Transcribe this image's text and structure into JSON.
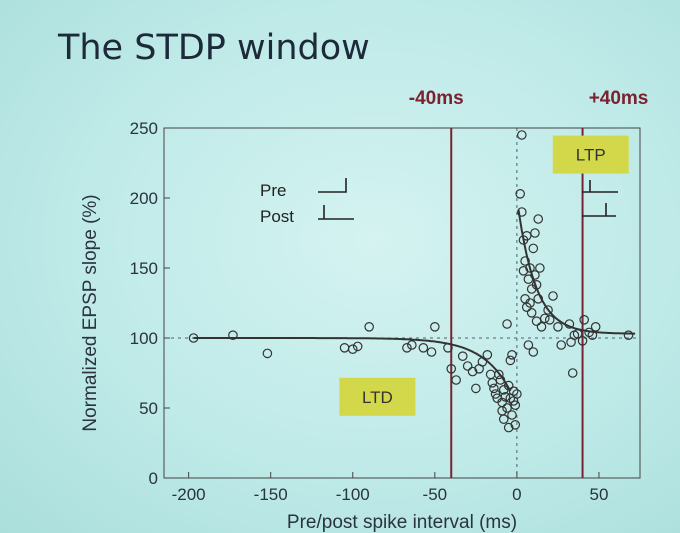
{
  "slide": {
    "title": "The STDP window"
  },
  "chart_data": {
    "type": "scatter",
    "title": "",
    "xlabel": "Pre/post spike interval (ms)",
    "ylabel": "Normalized EPSP slope (%)",
    "xlim": [
      -215,
      75
    ],
    "ylim": [
      0,
      250
    ],
    "xticks": [
      -200,
      -150,
      -100,
      -50,
      0,
      50
    ],
    "yticks": [
      0,
      50,
      100,
      150,
      200,
      250
    ],
    "reference_lines": [
      {
        "label": "-40ms",
        "x": -40
      },
      {
        "label": "+40ms",
        "x": 40
      }
    ],
    "baseline": 100,
    "legend_inset": {
      "pre": "Pre",
      "post": "Post"
    },
    "regions": [
      {
        "label": "LTD",
        "x": -85,
        "y": 58
      },
      {
        "label": "LTP",
        "x": 45,
        "y": 231
      }
    ],
    "series": [
      {
        "points": [
          [
            -197,
            100
          ],
          [
            -173,
            102
          ],
          [
            -152,
            89
          ],
          [
            -105,
            93
          ],
          [
            -100,
            92
          ],
          [
            -97,
            94
          ],
          [
            -90,
            108
          ],
          [
            -67,
            93
          ],
          [
            -64,
            95
          ],
          [
            -57,
            93
          ],
          [
            -52,
            90
          ],
          [
            -50,
            108
          ],
          [
            -42,
            93
          ],
          [
            -40,
            78
          ],
          [
            -37,
            70
          ],
          [
            -33,
            87
          ],
          [
            -30,
            80
          ],
          [
            -27,
            76
          ],
          [
            -25,
            64
          ],
          [
            -23,
            78
          ],
          [
            -21,
            83
          ],
          [
            -18,
            88
          ],
          [
            -16,
            74
          ],
          [
            -15,
            68
          ],
          [
            -14,
            64
          ],
          [
            -13,
            60
          ],
          [
            -12,
            57
          ],
          [
            -11,
            74
          ],
          [
            -10,
            70
          ],
          [
            -9,
            54
          ],
          [
            -9,
            48
          ],
          [
            -8,
            63
          ],
          [
            -8,
            42
          ],
          [
            -7,
            58
          ],
          [
            -6,
            50
          ],
          [
            -5,
            36
          ],
          [
            -5,
            66
          ],
          [
            -4,
            57
          ],
          [
            -4,
            84
          ],
          [
            -3,
            88
          ],
          [
            -3,
            45
          ],
          [
            -2,
            55
          ],
          [
            -2,
            62
          ],
          [
            -1,
            52
          ],
          [
            -1,
            38
          ],
          [
            0,
            60
          ],
          [
            -6,
            110
          ],
          [
            2,
            203
          ],
          [
            3,
            245
          ],
          [
            3,
            190
          ],
          [
            4,
            170
          ],
          [
            4,
            148
          ],
          [
            5,
            155
          ],
          [
            5,
            128
          ],
          [
            6,
            122
          ],
          [
            6,
            173
          ],
          [
            7,
            142
          ],
          [
            7,
            95
          ],
          [
            8,
            125
          ],
          [
            8,
            150
          ],
          [
            9,
            135
          ],
          [
            9,
            118
          ],
          [
            10,
            164
          ],
          [
            10,
            90
          ],
          [
            11,
            175
          ],
          [
            11,
            145
          ],
          [
            12,
            138
          ],
          [
            12,
            112
          ],
          [
            13,
            128
          ],
          [
            13,
            185
          ],
          [
            14,
            150
          ],
          [
            15,
            108
          ],
          [
            17,
            114
          ],
          [
            19,
            120
          ],
          [
            20,
            113
          ],
          [
            22,
            130
          ],
          [
            25,
            108
          ],
          [
            27,
            95
          ],
          [
            32,
            110
          ],
          [
            33,
            97
          ],
          [
            34,
            75
          ],
          [
            35,
            102
          ],
          [
            37,
            103
          ],
          [
            40,
            98
          ],
          [
            41,
            113
          ],
          [
            44,
            104
          ],
          [
            46,
            102
          ],
          [
            48,
            108
          ],
          [
            68,
            102
          ]
        ]
      }
    ]
  }
}
